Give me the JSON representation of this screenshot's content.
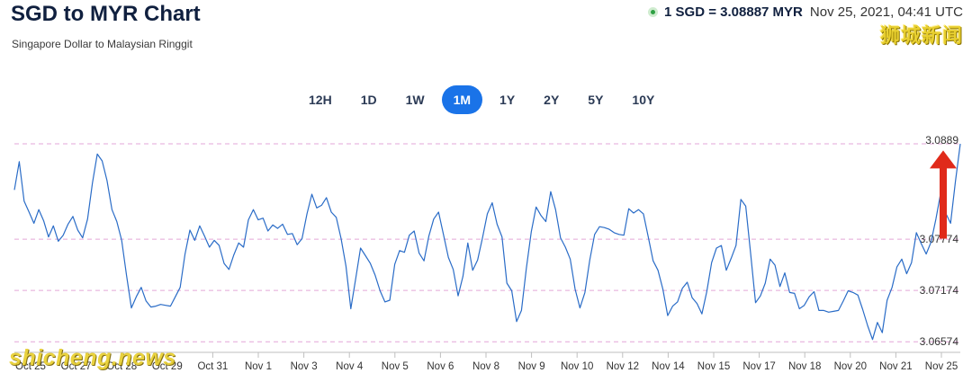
{
  "header": {
    "title": "SGD to MYR Chart",
    "subtitle": "Singapore Dollar to Malaysian Ringgit",
    "rate_text": "1 SGD = 3.08887 MYR",
    "rate_time": "Nov 25, 2021, 04:41 UTC"
  },
  "watermarks": {
    "cn": "狮城新闻",
    "en": "shicheng.news"
  },
  "tabs": [
    {
      "label": "12H",
      "active": false
    },
    {
      "label": "1D",
      "active": false
    },
    {
      "label": "1W",
      "active": false
    },
    {
      "label": "1M",
      "active": true
    },
    {
      "label": "1Y",
      "active": false
    },
    {
      "label": "2Y",
      "active": false
    },
    {
      "label": "5Y",
      "active": false
    },
    {
      "label": "10Y",
      "active": false
    }
  ],
  "colors": {
    "line": "#2a6cc7",
    "accent": "#1a73e8",
    "gridline": "#e3a6d8",
    "arrow": "#e02a1a"
  },
  "chart_data": {
    "type": "line",
    "x_ticks": [
      "Oct 25",
      "Oct 27",
      "Oct 28",
      "Oct 29",
      "Oct 31",
      "Nov 1",
      "Nov 3",
      "Nov 4",
      "Nov 5",
      "Nov 6",
      "Nov 8",
      "Nov 9",
      "Nov 10",
      "Nov 12",
      "Nov 14",
      "Nov 15",
      "Nov 17",
      "Nov 18",
      "Nov 20",
      "Nov 21",
      "Nov 25"
    ],
    "y_ticks": [
      3.0889,
      3.07774,
      3.07174,
      3.06574
    ],
    "ylim": [
      3.0645,
      3.091
    ],
    "series": [
      {
        "values": [
          3.0835,
          3.0868,
          3.0822,
          3.0809,
          3.0796,
          3.0812,
          3.0799,
          3.078,
          3.0793,
          3.0775,
          3.0782,
          3.0795,
          3.0804,
          3.0788,
          3.0779,
          3.0801,
          3.0843,
          3.0877,
          3.0869,
          3.0846,
          3.0812,
          3.0798,
          3.0776,
          3.0735,
          3.0697,
          3.071,
          3.0721,
          3.0705,
          3.0698,
          3.0699,
          3.0701,
          3.07,
          3.0699,
          3.071,
          3.0721,
          3.076,
          3.0788,
          3.0776,
          3.0793,
          3.0781,
          3.0768,
          3.0776,
          3.077,
          3.0749,
          3.0742,
          3.0759,
          3.0773,
          3.0768,
          3.08,
          3.0812,
          3.08,
          3.0802,
          3.0787,
          3.0794,
          3.079,
          3.0795,
          3.0783,
          3.0784,
          3.0771,
          3.0778,
          3.0807,
          3.083,
          3.0814,
          3.0817,
          3.0826,
          3.0809,
          3.0803,
          3.0778,
          3.0746,
          3.0696,
          3.0731,
          3.0767,
          3.0758,
          3.0749,
          3.0735,
          3.0717,
          3.0704,
          3.0706,
          3.0748,
          3.0764,
          3.0762,
          3.0782,
          3.0787,
          3.0761,
          3.0752,
          3.0781,
          3.0801,
          3.0809,
          3.0783,
          3.0756,
          3.0742,
          3.0711,
          3.0734,
          3.0773,
          3.0741,
          3.0753,
          3.0779,
          3.0807,
          3.082,
          3.0795,
          3.078,
          3.0726,
          3.0717,
          3.0681,
          3.0694,
          3.0743,
          3.0786,
          3.0815,
          3.0805,
          3.0798,
          3.0833,
          3.0812,
          3.0779,
          3.0768,
          3.0754,
          3.0719,
          3.0697,
          3.0715,
          3.0753,
          3.0783,
          3.0792,
          3.0791,
          3.0789,
          3.0785,
          3.0783,
          3.0782,
          3.0813,
          3.0808,
          3.0812,
          3.0807,
          3.078,
          3.0752,
          3.0741,
          3.0719,
          3.0688,
          3.0699,
          3.0704,
          3.072,
          3.0727,
          3.0709,
          3.0702,
          3.069,
          3.0716,
          3.075,
          3.0767,
          3.077,
          3.0741,
          3.0755,
          3.077,
          3.0824,
          3.0816,
          3.0761,
          3.0703,
          3.0711,
          3.0726,
          3.0754,
          3.0747,
          3.0722,
          3.0738,
          3.0715,
          3.0714,
          3.0696,
          3.07,
          3.071,
          3.0716,
          3.0694,
          3.0694,
          3.0692,
          3.0693,
          3.0694,
          3.0705,
          3.0717,
          3.0715,
          3.0712,
          3.0695,
          3.0676,
          3.066,
          3.068,
          3.0668,
          3.0706,
          3.0721,
          3.0745,
          3.0754,
          3.0737,
          3.075,
          3.0785,
          3.0772,
          3.076,
          3.0774,
          3.0801,
          3.0832,
          3.0808,
          3.0796,
          3.0845,
          3.0889
        ]
      }
    ],
    "annotations": [
      "red arrow pointing up at latest value near 3.0889"
    ]
  }
}
